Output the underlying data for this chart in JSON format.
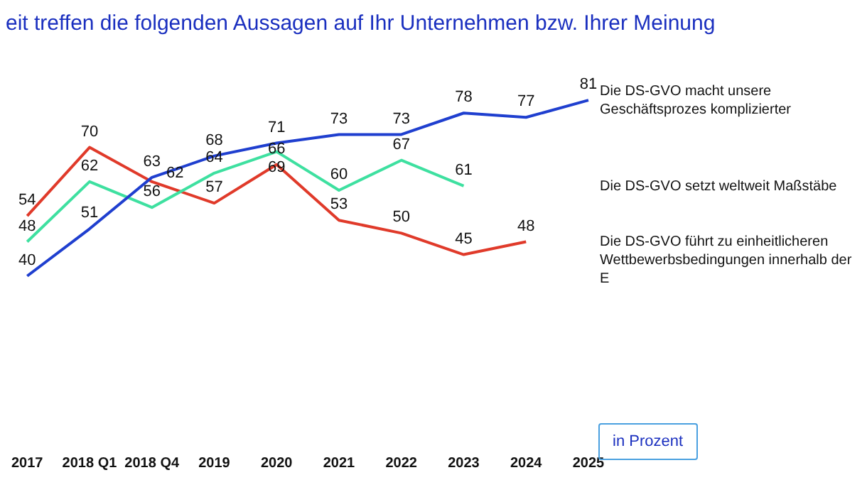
{
  "chart_data": {
    "type": "line",
    "title": "eit treffen die folgenden Aussagen auf Ihr Unternehmen bzw. Ihrer Meinung",
    "categories": [
      "2017",
      "2018 Q1",
      "2018 Q4",
      "2019",
      "2020",
      "2021",
      "2022",
      "2023",
      "2024",
      "2025"
    ],
    "series": [
      {
        "name": "Die DS-GVO macht unsere Geschäftsprozes komplizierter",
        "color": "#1f3fcf",
        "values": [
          40,
          51,
          63,
          68,
          71,
          73,
          73,
          78,
          77,
          81
        ]
      },
      {
        "name": "Die DS-GVO setzt weltweit Maßstäbe",
        "color": "#3ee0a0",
        "values": [
          48,
          62,
          56,
          64,
          69,
          60,
          67,
          61,
          null,
          null
        ]
      },
      {
        "name": "Die DS-GVO führt zu einheitlicheren Wettbewerbsbedingungen innerhalb der E",
        "color": "#e03a2a",
        "values": [
          54,
          70,
          62,
          57,
          66,
          53,
          50,
          45,
          48,
          null
        ]
      }
    ],
    "data_labels": true,
    "legend": false,
    "grid": false,
    "marker": "none",
    "line_style": "solid",
    "annotations": [
      "in Prozent"
    ]
  }
}
